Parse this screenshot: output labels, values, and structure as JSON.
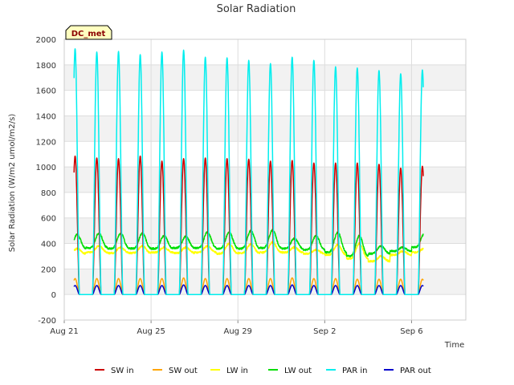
{
  "chart_data": {
    "type": "line",
    "title": "Solar Radiation",
    "xlabel": "Time",
    "ylabel": "Solar Radiation (W/m2 umol/m2/s)",
    "badge": "DC_met",
    "ylim": [
      -200,
      2000
    ],
    "xlim": [
      0,
      18.5
    ],
    "yticks": [
      -200,
      0,
      200,
      400,
      600,
      800,
      1000,
      1200,
      1400,
      1600,
      1800,
      2000
    ],
    "xticks": [
      {
        "value": 0,
        "label": "Aug 21"
      },
      {
        "value": 4,
        "label": "Aug 25"
      },
      {
        "value": 8,
        "label": "Aug 29"
      },
      {
        "value": 12,
        "label": "Sep 2"
      },
      {
        "value": 16,
        "label": "Sep 6"
      }
    ],
    "grid": true,
    "legend_position": "bottom",
    "days": [
      "Aug 21",
      "Aug 22",
      "Aug 23",
      "Aug 24",
      "Aug 25",
      "Aug 26",
      "Aug 27",
      "Aug 28",
      "Aug 29",
      "Aug 30",
      "Aug 31",
      "Sep 1",
      "Sep 2",
      "Sep 3",
      "Sep 4",
      "Sep 5",
      "Sep 6"
    ],
    "series": [
      {
        "name": "SW in",
        "color": "#cc0000",
        "kind": "peak",
        "peaks": [
          1085,
          1070,
          1065,
          1085,
          1045,
          1065,
          1070,
          1065,
          1060,
          1045,
          1050,
          1030,
          1030,
          1030,
          1020,
          990,
          1005
        ]
      },
      {
        "name": "SW out",
        "color": "#ffa500",
        "kind": "peak",
        "peaks": [
          125,
          125,
          125,
          125,
          125,
          130,
          125,
          125,
          125,
          125,
          130,
          125,
          125,
          120,
          120,
          120,
          120
        ]
      },
      {
        "name": "LW in",
        "color": "#ffff00",
        "kind": "band",
        "night": [
          320,
          330,
          325,
          325,
          330,
          325,
          330,
          320,
          325,
          330,
          330,
          320,
          310,
          280,
          260,
          310,
          330
        ],
        "day": [
          360,
          380,
          370,
          380,
          370,
          370,
          380,
          400,
          395,
          410,
          370,
          350,
          390,
          400,
          300,
          340,
          360
        ]
      },
      {
        "name": "LW out",
        "color": "#00dd00",
        "kind": "band",
        "night": [
          360,
          365,
          360,
          360,
          360,
          365,
          365,
          360,
          360,
          365,
          360,
          350,
          330,
          300,
          320,
          340,
          370
        ],
        "day": [
          470,
          480,
          480,
          480,
          460,
          455,
          490,
          490,
          500,
          505,
          440,
          460,
          490,
          460,
          380,
          370,
          480
        ]
      },
      {
        "name": "PAR in",
        "color": "#00eeee",
        "kind": "peak",
        "peaks": [
          1925,
          1900,
          1905,
          1880,
          1900,
          1915,
          1860,
          1855,
          1835,
          1810,
          1860,
          1835,
          1785,
          1775,
          1755,
          1730,
          1760
        ]
      },
      {
        "name": "PAR out",
        "color": "#0000cc",
        "kind": "peak",
        "peaks": [
          70,
          70,
          70,
          70,
          70,
          75,
          70,
          70,
          70,
          70,
          75,
          70,
          70,
          70,
          70,
          70,
          70
        ]
      }
    ]
  }
}
